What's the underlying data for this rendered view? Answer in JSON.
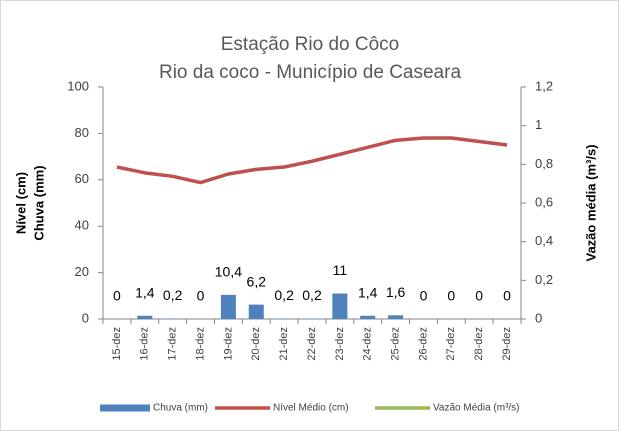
{
  "chart_data": {
    "type": "bar",
    "title": "Estação Rio do Côco",
    "subtitle": "Rio da coco - Município de Caseara",
    "y_label": "Nível (cm)",
    "y_label_2": "Chuva (mm)",
    "y2_label": "Vazão média (m³/s)",
    "categories": [
      "15-dez",
      "16-dez",
      "17-dez",
      "18-dez",
      "19-dez",
      "20-dez",
      "21-dez",
      "22-dez",
      "23-dez",
      "24-dez",
      "25-dez",
      "26-dez",
      "27-dez",
      "28-dez",
      "29-dez"
    ],
    "series": [
      {
        "name": "Chuva (mm)",
        "type": "bar",
        "color": "#4f81bd",
        "values": [
          0,
          1.4,
          0.2,
          0,
          10.4,
          6.2,
          0.2,
          0.2,
          11,
          1.4,
          1.6,
          0,
          0,
          0,
          0
        ],
        "value_labels": [
          "0",
          "1,4",
          "0,2",
          "0",
          "10,4",
          "6,2",
          "0,2",
          "0,2",
          "11",
          "1,4",
          "1,6",
          "0",
          "0",
          "0",
          "0"
        ]
      },
      {
        "name": "Nível Médio (cm)",
        "type": "line",
        "color": "#c0504d",
        "values": [
          65.5,
          63,
          61.5,
          58.8,
          62.5,
          64.5,
          65.5,
          68,
          71,
          74,
          77,
          78,
          78,
          76.5,
          75
        ]
      },
      {
        "name": "Vazão Média (m³/s)",
        "type": "line",
        "color": "#9bbb59",
        "axis": "y2",
        "values": [
          null,
          null,
          null,
          null,
          null,
          null,
          null,
          null,
          null,
          null,
          null,
          null,
          null,
          null,
          null
        ]
      }
    ],
    "ylim": [
      0,
      100
    ],
    "yticks": [
      0,
      20,
      40,
      60,
      80,
      100
    ],
    "y2lim": [
      0,
      1.2
    ],
    "y2ticks": [
      0,
      {
        "value": 0.2,
        "label": "0,2"
      },
      {
        "value": 0.4,
        "label": "0,4"
      },
      {
        "value": 0.6,
        "label": "0,6"
      },
      {
        "value": 0.8,
        "label": "0,8"
      },
      1,
      {
        "value": 1.2,
        "label": "1,2"
      }
    ],
    "grid": false,
    "legend": "bottom"
  }
}
